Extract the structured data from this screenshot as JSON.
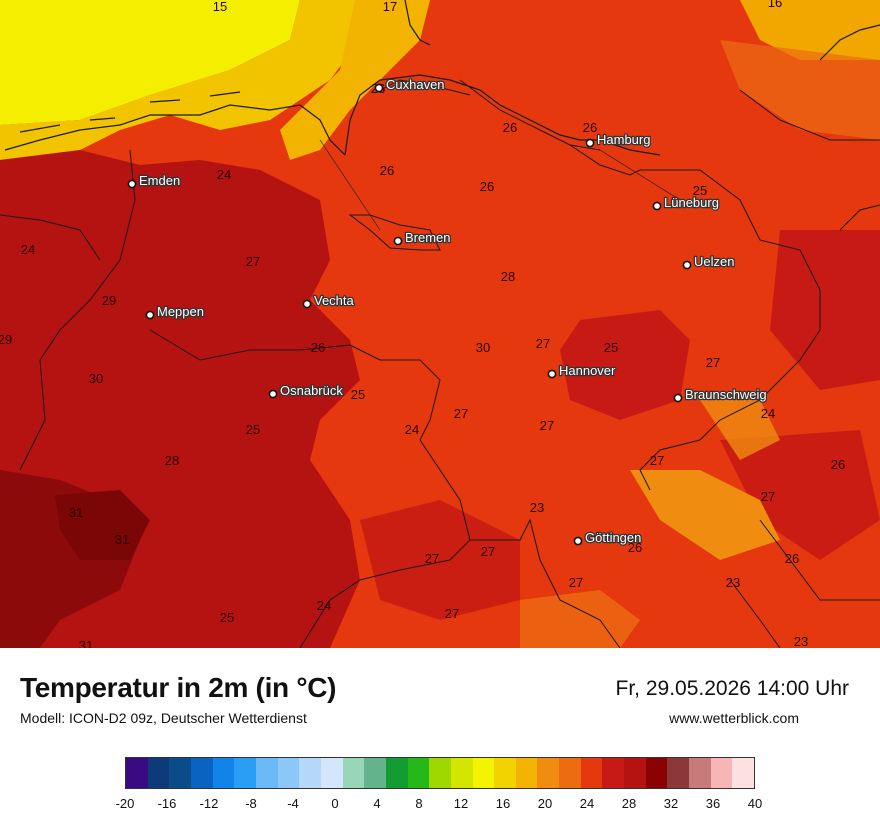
{
  "map": {
    "cities": [
      {
        "name": "Cuxhaven"
      },
      {
        "name": "Hamburg"
      },
      {
        "name": "Emden"
      },
      {
        "name": "Lüneburg"
      },
      {
        "name": "Bremen"
      },
      {
        "name": "Uelzen"
      },
      {
        "name": "Vechta"
      },
      {
        "name": "Meppen"
      },
      {
        "name": "Hannover"
      },
      {
        "name": "Osnabrück"
      },
      {
        "name": "Braunschweig"
      },
      {
        "name": "Göttingen"
      }
    ],
    "temperature_labels": [
      "15",
      "17",
      "16",
      "26",
      "26",
      "26",
      "26",
      "26",
      "24",
      "25",
      "27",
      "28",
      "24",
      "29",
      "29",
      "30",
      "30",
      "27",
      "25",
      "27",
      "26",
      "25",
      "28",
      "24",
      "27",
      "27",
      "24",
      "26",
      "27",
      "23",
      "27",
      "31",
      "31",
      "26",
      "27",
      "26",
      "27",
      "27",
      "24",
      "25",
      "27",
      "23",
      "23",
      "31",
      "25"
    ],
    "colors": {
      "sea": "#f4ef00",
      "coast": "#f2b800",
      "warm": "#e5380f",
      "hot": "#b51212",
      "hotter": "#8c0a0a"
    }
  },
  "header": {
    "title": "Temperatur in 2m (in °C)",
    "subtitle": "Modell: ICON-D2 09z, Deutscher Wetterdienst",
    "datetime": "Fr, 29.05.2026 14:00 Uhr",
    "website": "www.wetterblick.com"
  },
  "legend": {
    "colors": [
      "#3a0a82",
      "#0d3b7a",
      "#0a4c8a",
      "#0a63c0",
      "#1283e8",
      "#2a9df5",
      "#6cb9f7",
      "#8cc8f7",
      "#b5d8f9",
      "#d3e6fb",
      "#97d7b8",
      "#63b38c",
      "#129c32",
      "#26b818",
      "#9fd800",
      "#d3e600",
      "#f4f400",
      "#f2d300",
      "#f2b400",
      "#f08c10",
      "#ec6c12",
      "#e5380f",
      "#c71a14",
      "#b51212",
      "#8a0202",
      "#8c3838",
      "#c77a7a",
      "#f7b5b5",
      "#fde0e0"
    ],
    "ticks": [
      "-20",
      "-16",
      "-12",
      "-8",
      "-4",
      "0",
      "4",
      "8",
      "12",
      "16",
      "20",
      "24",
      "28",
      "32",
      "36",
      "40"
    ]
  }
}
